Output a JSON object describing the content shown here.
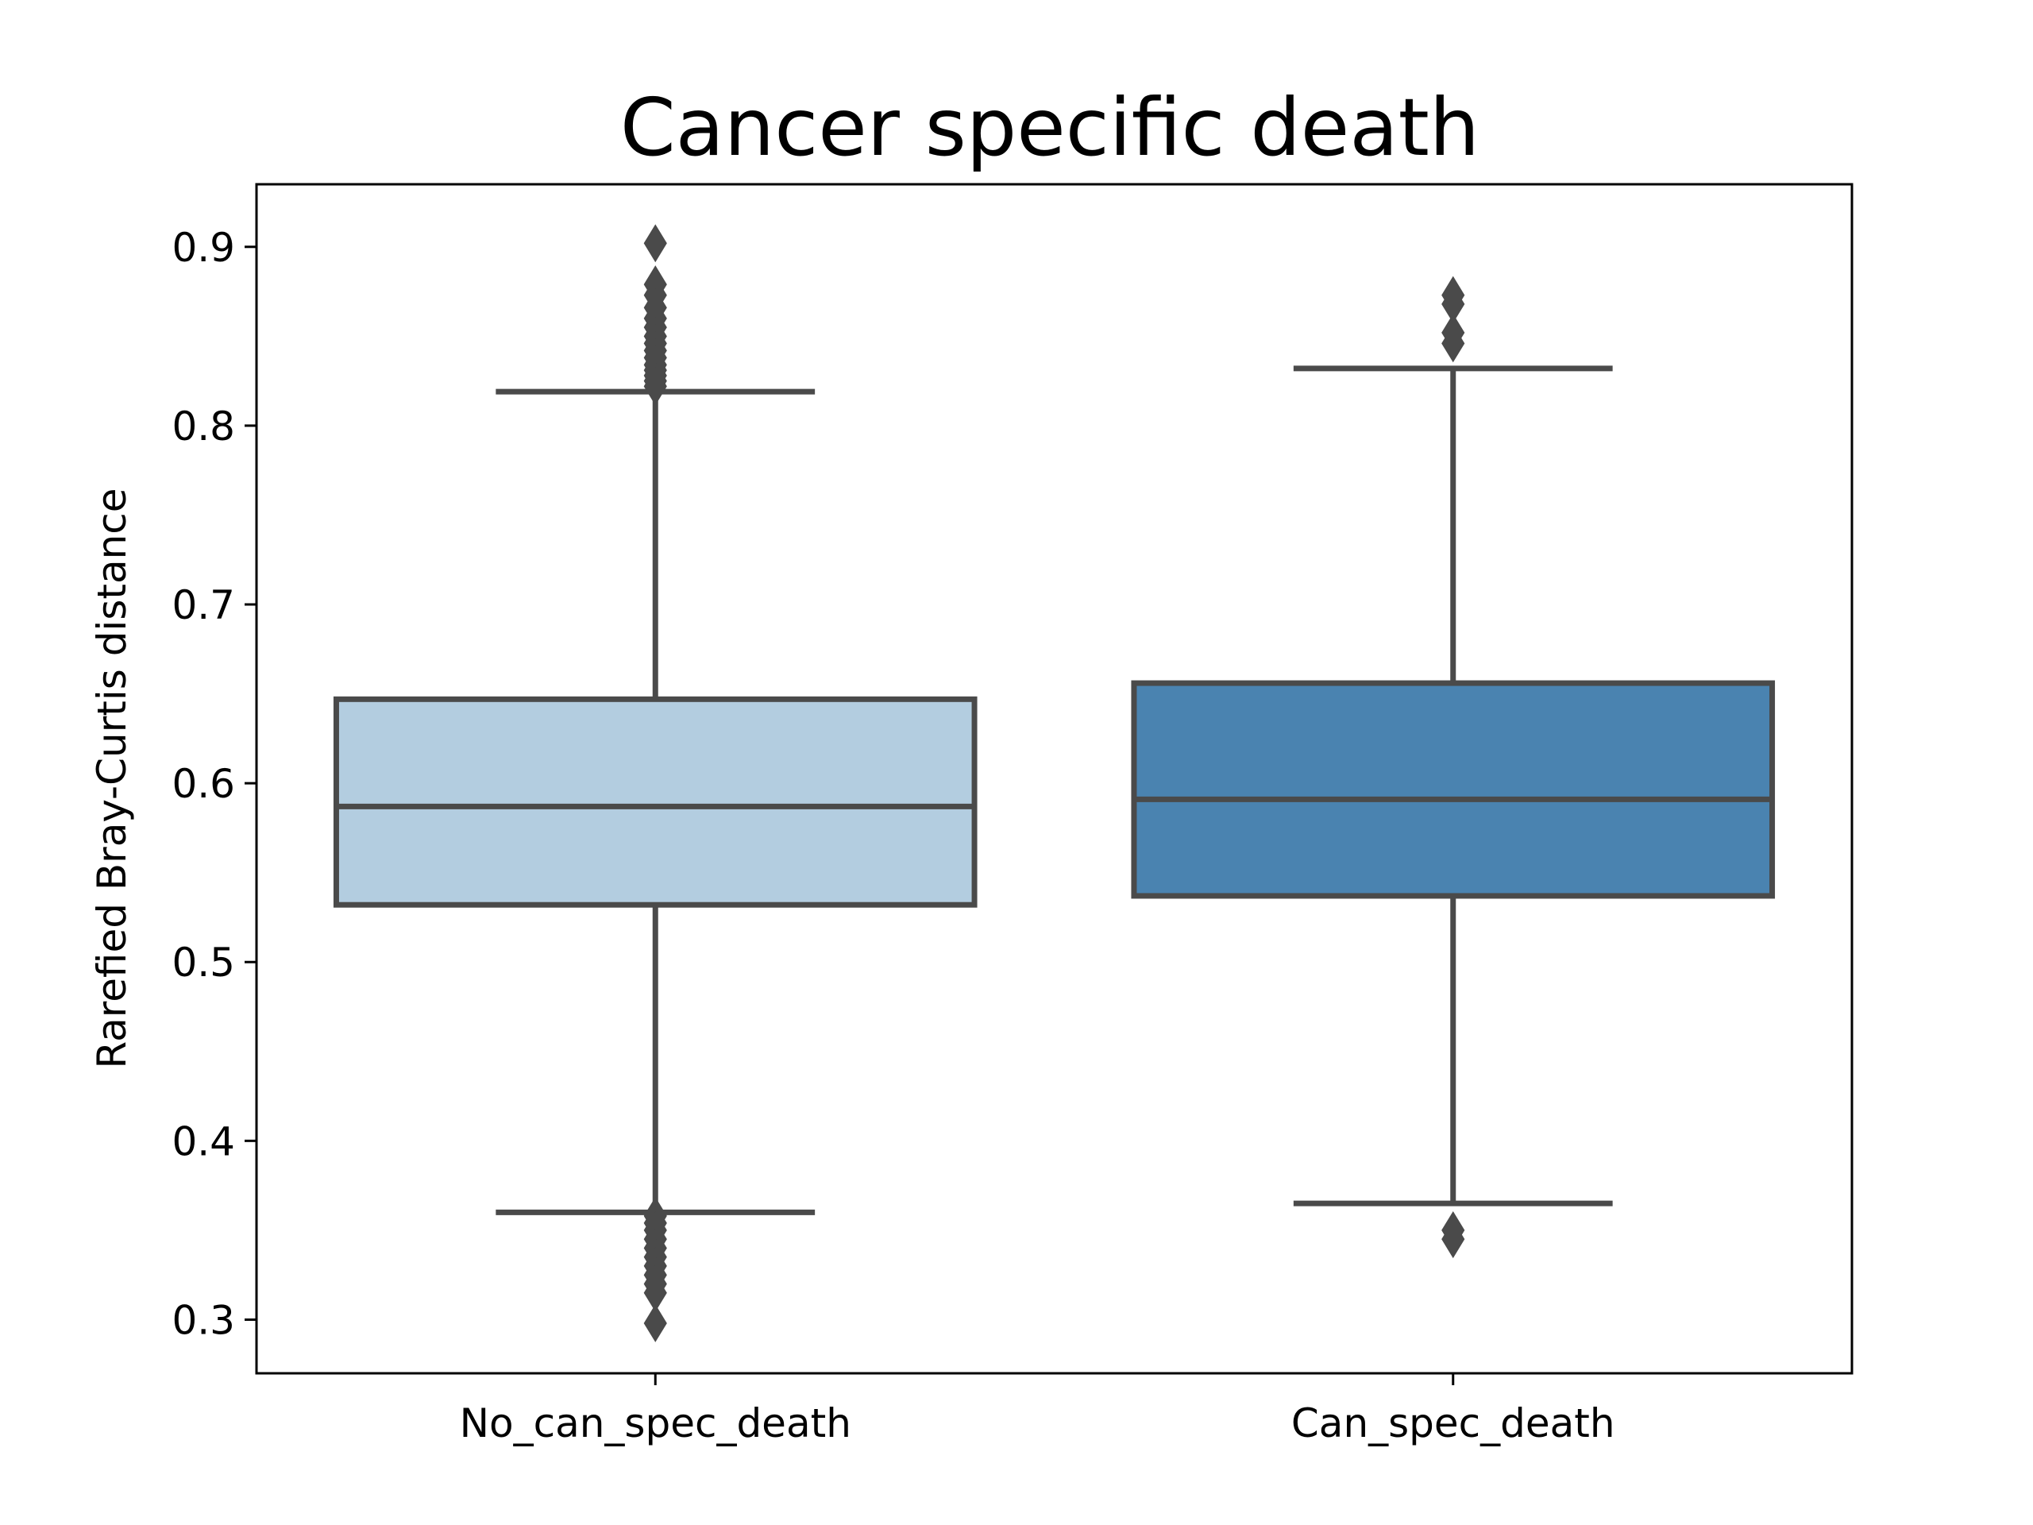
{
  "chart_data": {
    "type": "box",
    "title": "Cancer specific death",
    "xlabel": "",
    "ylabel": "Rarefied Bray-Curtis distance",
    "ylim": [
      0.27,
      0.935
    ],
    "yticks": [
      0.3,
      0.4,
      0.5,
      0.6,
      0.7,
      0.8,
      0.9
    ],
    "ytick_labels": [
      "0.3",
      "0.4",
      "0.5",
      "0.6",
      "0.7",
      "0.8",
      "0.9"
    ],
    "categories": [
      "No_can_spec_death",
      "Can_spec_death"
    ],
    "grid": false,
    "legend": "none",
    "boxes": [
      {
        "category": "No_can_spec_death",
        "whisker_low": 0.36,
        "q1": 0.532,
        "median": 0.587,
        "q3": 0.647,
        "whisker_high": 0.819,
        "outliers": [
          0.902,
          0.879,
          0.873,
          0.866,
          0.86,
          0.855,
          0.85,
          0.846,
          0.842,
          0.838,
          0.834,
          0.831,
          0.828,
          0.825,
          0.822,
          0.358,
          0.354,
          0.35,
          0.345,
          0.34,
          0.335,
          0.33,
          0.325,
          0.32,
          0.315,
          0.298
        ],
        "color": "#b3cde0"
      },
      {
        "category": "Can_spec_death",
        "whisker_low": 0.365,
        "q1": 0.537,
        "median": 0.591,
        "q3": 0.656,
        "whisker_high": 0.832,
        "outliers": [
          0.873,
          0.868,
          0.852,
          0.846,
          0.35,
          0.345
        ],
        "color": "#4a83b0"
      }
    ],
    "line_color": "#4a4a4a"
  }
}
